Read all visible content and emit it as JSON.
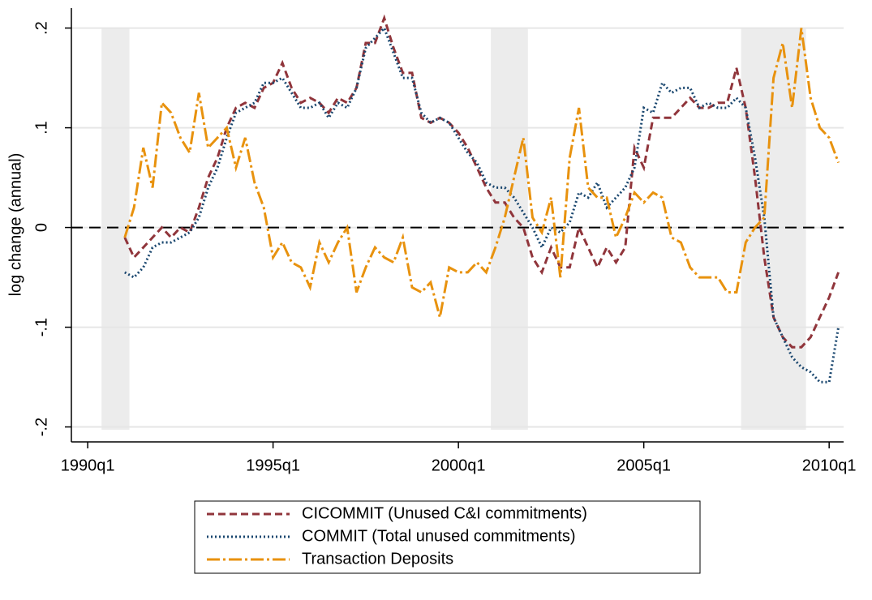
{
  "chart_data": {
    "type": "line",
    "ylabel": "log change (annual)",
    "x": [
      "1991q1",
      "1991q2",
      "1991q3",
      "1991q4",
      "1992q1",
      "1992q2",
      "1992q3",
      "1992q4",
      "1993q1",
      "1993q2",
      "1993q3",
      "1993q4",
      "1994q1",
      "1994q2",
      "1994q3",
      "1994q4",
      "1995q1",
      "1995q2",
      "1995q3",
      "1995q4",
      "1996q1",
      "1996q2",
      "1996q3",
      "1996q4",
      "1997q1",
      "1997q2",
      "1997q3",
      "1997q4",
      "1998q1",
      "1998q2",
      "1998q3",
      "1998q4",
      "1999q1",
      "1999q2",
      "1999q3",
      "1999q4",
      "2000q1",
      "2000q2",
      "2000q3",
      "2000q4",
      "2001q1",
      "2001q2",
      "2001q3",
      "2001q4",
      "2002q1",
      "2002q2",
      "2002q3",
      "2002q4",
      "2003q1",
      "2003q2",
      "2003q3",
      "2003q4",
      "2004q1",
      "2004q2",
      "2004q3",
      "2004q4",
      "2005q1",
      "2005q2",
      "2005q3",
      "2005q4",
      "2006q1",
      "2006q2",
      "2006q3",
      "2006q4",
      "2007q1",
      "2007q2",
      "2007q3",
      "2007q4",
      "2008q1",
      "2008q2",
      "2008q3",
      "2008q4",
      "2009q1",
      "2009q2",
      "2009q3",
      "2009q4",
      "2010q1",
      "2010q2"
    ],
    "series": [
      {
        "name": "CICOMMIT (Unused C&I commitments)",
        "color": "#90353b",
        "dash": "9,5",
        "values": [
          -0.01,
          -0.03,
          -0.02,
          -0.01,
          0.0,
          -0.01,
          0.0,
          -0.005,
          0.02,
          0.05,
          0.07,
          0.1,
          0.12,
          0.125,
          0.12,
          0.14,
          0.145,
          0.165,
          0.14,
          0.125,
          0.13,
          0.125,
          0.115,
          0.13,
          0.125,
          0.14,
          0.185,
          0.185,
          0.21,
          0.18,
          0.155,
          0.155,
          0.11,
          0.105,
          0.11,
          0.105,
          0.095,
          0.08,
          0.06,
          0.04,
          0.025,
          0.025,
          0.01,
          0.0,
          -0.03,
          -0.045,
          -0.02,
          -0.04,
          -0.04,
          0.0,
          -0.02,
          -0.04,
          -0.02,
          -0.035,
          -0.02,
          0.08,
          0.06,
          0.11,
          0.11,
          0.11,
          0.12,
          0.13,
          0.12,
          0.12,
          0.125,
          0.125,
          0.16,
          0.12,
          0.05,
          -0.03,
          -0.09,
          -0.11,
          -0.12,
          -0.12,
          -0.11,
          -0.09,
          -0.07,
          -0.045
        ]
      },
      {
        "name": "COMMIT (Total unused commitments)",
        "color": "#1a476f",
        "dash": "2,3",
        "values": [
          -0.045,
          -0.05,
          -0.04,
          -0.02,
          -0.015,
          -0.015,
          -0.01,
          -0.005,
          0.01,
          0.04,
          0.06,
          0.09,
          0.115,
          0.12,
          0.125,
          0.145,
          0.145,
          0.15,
          0.135,
          0.12,
          0.12,
          0.125,
          0.11,
          0.125,
          0.12,
          0.14,
          0.18,
          0.19,
          0.2,
          0.175,
          0.15,
          0.15,
          0.115,
          0.105,
          0.11,
          0.105,
          0.09,
          0.075,
          0.065,
          0.045,
          0.04,
          0.04,
          0.03,
          0.015,
          0.0,
          -0.02,
          0.0,
          -0.005,
          0.005,
          0.035,
          0.03,
          0.045,
          0.02,
          0.03,
          0.04,
          0.06,
          0.12,
          0.115,
          0.145,
          0.135,
          0.14,
          0.14,
          0.12,
          0.125,
          0.12,
          0.12,
          0.13,
          0.12,
          0.07,
          0.01,
          -0.09,
          -0.11,
          -0.13,
          -0.14,
          -0.145,
          -0.155,
          -0.155,
          -0.1
        ]
      },
      {
        "name": "Transaction Deposits",
        "color": "#e8920e",
        "dash": "16,4,3,4",
        "values": [
          -0.01,
          0.02,
          0.08,
          0.04,
          0.125,
          0.115,
          0.09,
          0.075,
          0.135,
          0.08,
          0.09,
          0.1,
          0.06,
          0.09,
          0.045,
          0.02,
          -0.03,
          -0.015,
          -0.035,
          -0.04,
          -0.06,
          -0.015,
          -0.035,
          -0.015,
          0.0,
          -0.065,
          -0.04,
          -0.02,
          -0.03,
          -0.035,
          -0.01,
          -0.06,
          -0.065,
          -0.055,
          -0.09,
          -0.04,
          -0.045,
          -0.045,
          -0.035,
          -0.045,
          -0.02,
          0.01,
          0.05,
          0.09,
          0.01,
          -0.005,
          0.03,
          -0.05,
          0.07,
          0.12,
          0.04,
          0.03,
          0.03,
          -0.01,
          0.01,
          0.035,
          0.025,
          0.035,
          0.03,
          -0.01,
          -0.015,
          -0.04,
          -0.05,
          -0.05,
          -0.05,
          -0.065,
          -0.065,
          -0.015,
          0.0,
          0.01,
          0.15,
          0.185,
          0.12,
          0.2,
          0.13,
          0.1,
          0.09,
          0.065
        ]
      }
    ],
    "recessions": [
      [
        "1990q3",
        "1991q1"
      ],
      [
        "2001q1",
        "2001q4"
      ],
      [
        "2007q4",
        "2009q2"
      ]
    ],
    "reference_line": 0,
    "xlim": [
      1989.56,
      2010.39
    ],
    "xticks": [
      {
        "value": 1990,
        "label": "1990q1"
      },
      {
        "value": 1995,
        "label": "1995q1"
      },
      {
        "value": 2000,
        "label": "2000q1"
      },
      {
        "value": 2005,
        "label": "2005q1"
      },
      {
        "value": 2010,
        "label": "2010q1"
      }
    ],
    "ylim": [
      -0.215,
      0.22
    ],
    "yticks": [
      {
        "value": -0.2,
        "label": "-.2"
      },
      {
        "value": -0.1,
        "label": "-.1"
      },
      0,
      {
        "value": 0.1,
        "label": ".1"
      },
      {
        "value": 0.2,
        "label": ".2"
      }
    ],
    "grid": true,
    "legend": "bottom"
  }
}
